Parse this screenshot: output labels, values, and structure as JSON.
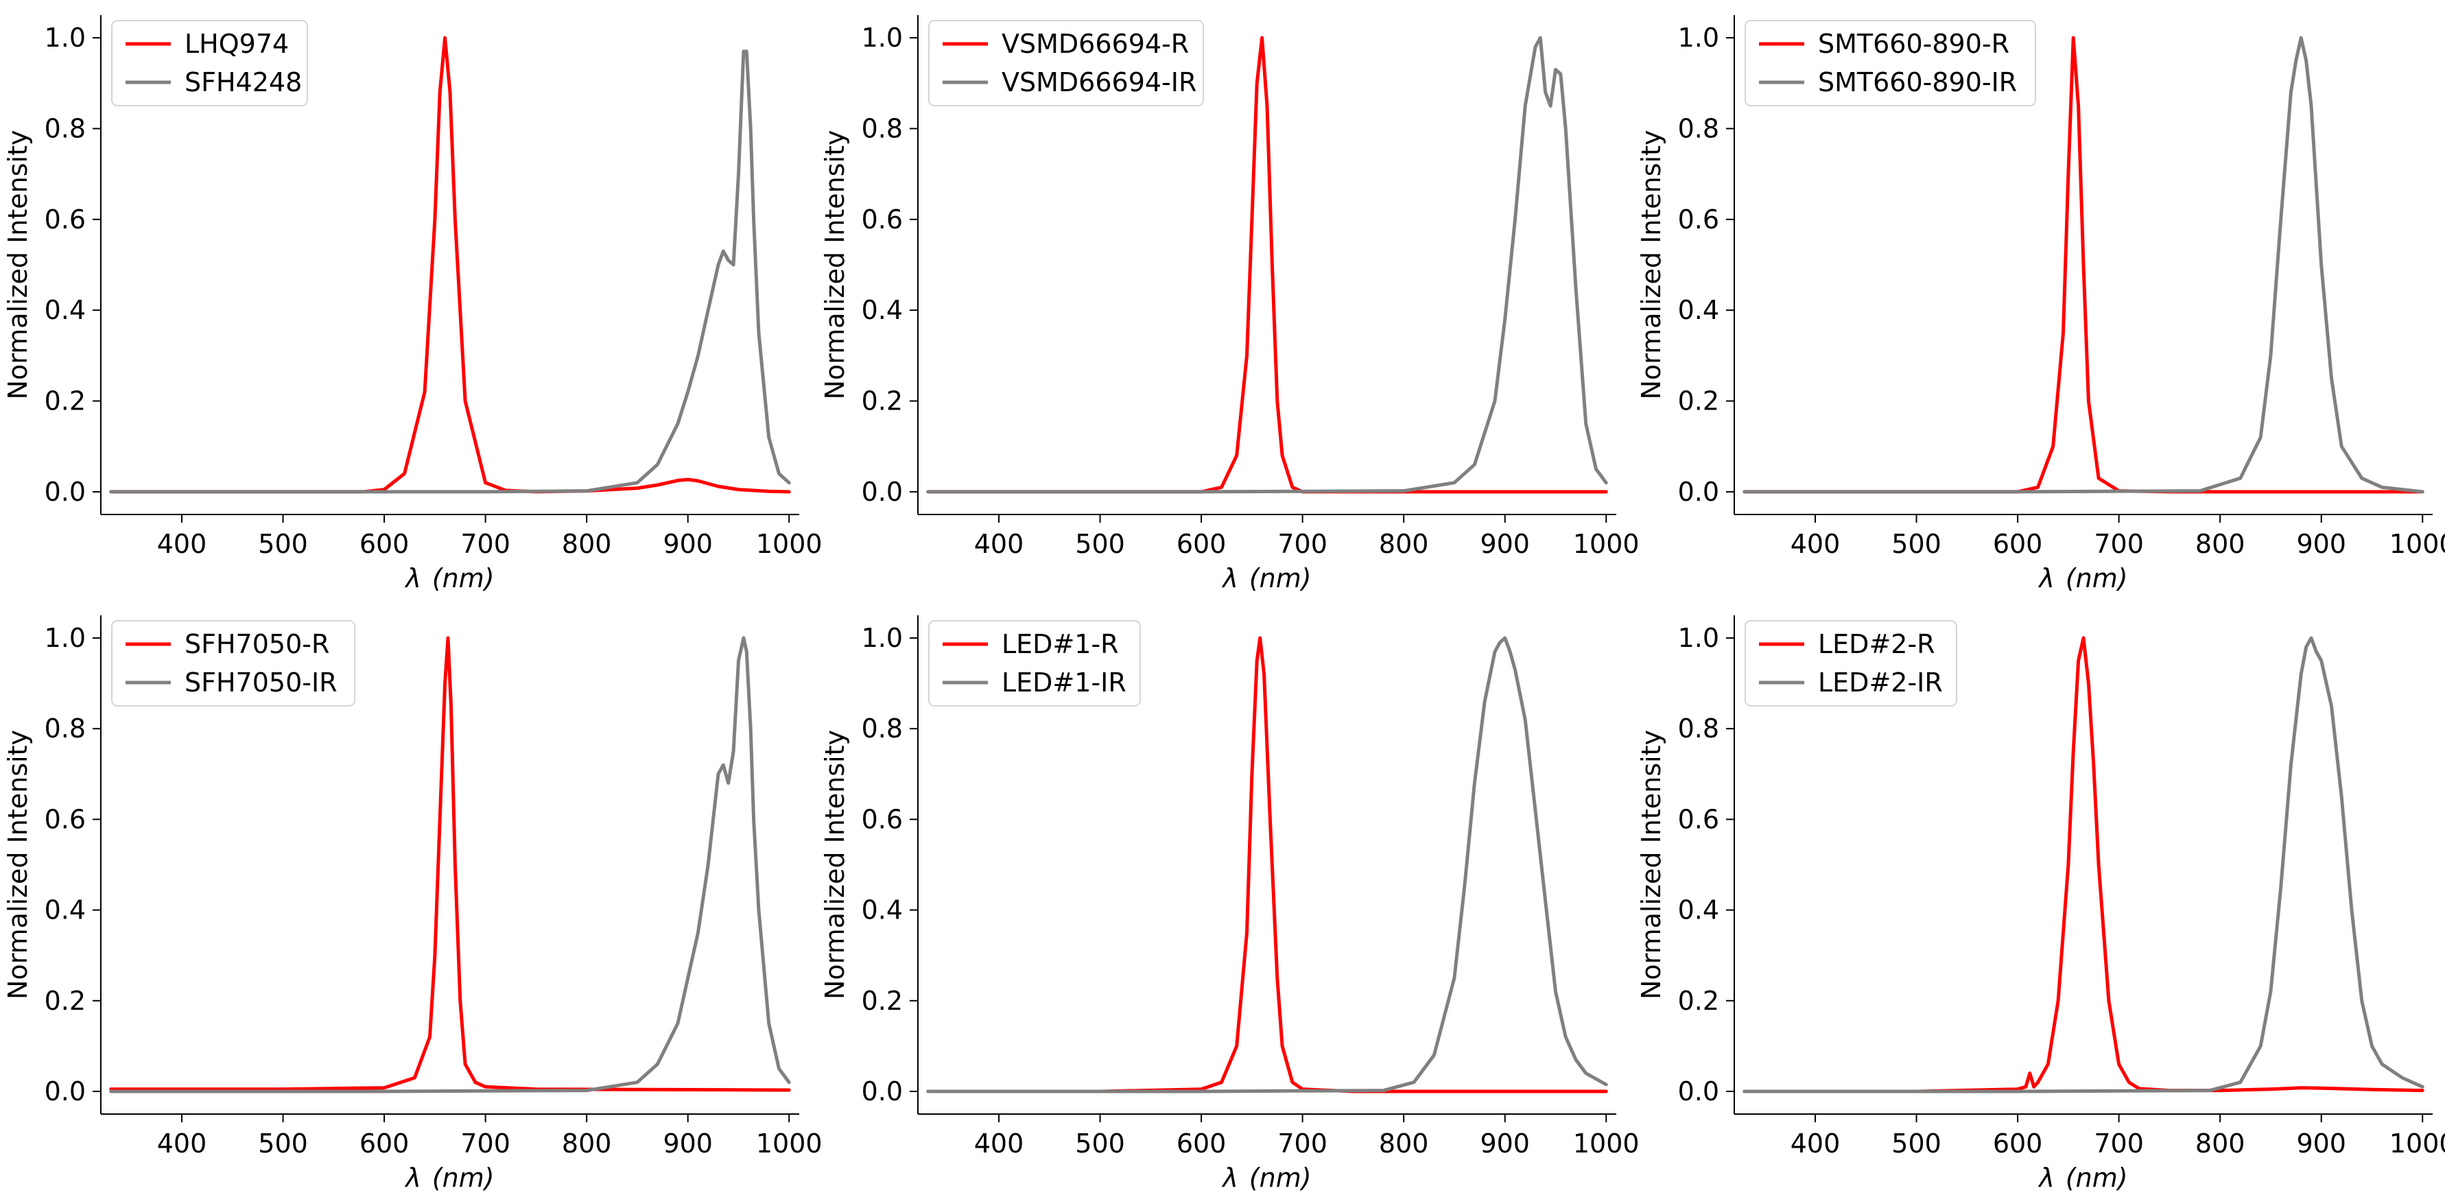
{
  "chart_data": [
    {
      "type": "line",
      "xlabel_symbol": "λ",
      "xlabel_unit": "(nm)",
      "ylabel": "Normalized Intensity",
      "xlim": [
        320,
        1010
      ],
      "ylim": [
        -0.05,
        1.05
      ],
      "xticks": [
        400,
        500,
        600,
        700,
        800,
        900,
        1000
      ],
      "yticks": [
        0.0,
        0.2,
        0.4,
        0.6,
        0.8,
        1.0
      ],
      "legend": "top-left",
      "grid": false,
      "series": [
        {
          "name": "LHQ974",
          "color": "#ff0000",
          "x": [
            330,
            400,
            500,
            580,
            600,
            620,
            640,
            650,
            655,
            660,
            665,
            670,
            680,
            700,
            720,
            750,
            800,
            850,
            870,
            890,
            900,
            910,
            930,
            950,
            980,
            1000
          ],
          "y": [
            0,
            0,
            0,
            0,
            0.005,
            0.04,
            0.22,
            0.6,
            0.88,
            1.0,
            0.88,
            0.6,
            0.2,
            0.02,
            0.003,
            0,
            0.002,
            0.008,
            0.015,
            0.025,
            0.027,
            0.024,
            0.012,
            0.005,
            0.001,
            0
          ]
        },
        {
          "name": "SFH4248",
          "color": "#808080",
          "x": [
            330,
            400,
            500,
            600,
            700,
            800,
            850,
            870,
            890,
            900,
            910,
            920,
            930,
            935,
            940,
            945,
            950,
            955,
            958,
            962,
            965,
            970,
            980,
            990,
            1000
          ],
          "y": [
            0,
            0,
            0,
            0,
            0,
            0.002,
            0.02,
            0.06,
            0.15,
            0.22,
            0.3,
            0.4,
            0.5,
            0.53,
            0.51,
            0.5,
            0.7,
            0.97,
            0.97,
            0.8,
            0.6,
            0.35,
            0.12,
            0.04,
            0.02
          ]
        }
      ]
    },
    {
      "type": "line",
      "xlabel_symbol": "λ",
      "xlabel_unit": "(nm)",
      "ylabel": "Normalized Intensity",
      "xlim": [
        320,
        1010
      ],
      "ylim": [
        -0.05,
        1.05
      ],
      "xticks": [
        400,
        500,
        600,
        700,
        800,
        900,
        1000
      ],
      "yticks": [
        0.0,
        0.2,
        0.4,
        0.6,
        0.8,
        1.0
      ],
      "legend": "top-left",
      "grid": false,
      "series": [
        {
          "name": "VSMD66694-R",
          "color": "#ff0000",
          "x": [
            330,
            500,
            600,
            620,
            635,
            645,
            650,
            655,
            660,
            665,
            670,
            675,
            680,
            690,
            700,
            750,
            850,
            1000
          ],
          "y": [
            0,
            0,
            0,
            0.01,
            0.08,
            0.3,
            0.6,
            0.9,
            1.0,
            0.85,
            0.5,
            0.2,
            0.08,
            0.01,
            0,
            0,
            0,
            0
          ]
        },
        {
          "name": "VSMD66694-IR",
          "color": "#808080",
          "x": [
            330,
            600,
            800,
            850,
            870,
            890,
            900,
            910,
            920,
            930,
            935,
            940,
            945,
            950,
            955,
            960,
            970,
            980,
            990,
            1000
          ],
          "y": [
            0,
            0,
            0.002,
            0.02,
            0.06,
            0.2,
            0.38,
            0.6,
            0.85,
            0.98,
            1.0,
            0.88,
            0.85,
            0.93,
            0.92,
            0.8,
            0.45,
            0.15,
            0.05,
            0.02
          ]
        }
      ]
    },
    {
      "type": "line",
      "xlabel_symbol": "λ",
      "xlabel_unit": "(nm)",
      "ylabel": "Normalized Intensity",
      "xlim": [
        320,
        1010
      ],
      "ylim": [
        -0.05,
        1.05
      ],
      "xticks": [
        400,
        500,
        600,
        700,
        800,
        900,
        1000
      ],
      "yticks": [
        0.0,
        0.2,
        0.4,
        0.6,
        0.8,
        1.0
      ],
      "legend": "top-left",
      "grid": false,
      "series": [
        {
          "name": "SMT660-890-R",
          "color": "#ff0000",
          "x": [
            330,
            500,
            600,
            620,
            635,
            645,
            650,
            655,
            660,
            665,
            670,
            680,
            700,
            750,
            1000
          ],
          "y": [
            0,
            0,
            0,
            0.01,
            0.1,
            0.35,
            0.7,
            1.0,
            0.85,
            0.5,
            0.2,
            0.03,
            0.002,
            0,
            0
          ]
        },
        {
          "name": "SMT660-890-IR",
          "color": "#808080",
          "x": [
            330,
            600,
            780,
            820,
            840,
            850,
            860,
            870,
            875,
            880,
            885,
            890,
            900,
            910,
            920,
            940,
            960,
            1000
          ],
          "y": [
            0,
            0,
            0.002,
            0.03,
            0.12,
            0.3,
            0.6,
            0.88,
            0.95,
            1.0,
            0.95,
            0.85,
            0.5,
            0.25,
            0.1,
            0.03,
            0.01,
            0
          ]
        }
      ]
    },
    {
      "type": "line",
      "xlabel_symbol": "λ",
      "xlabel_unit": "(nm)",
      "ylabel": "Normalized Intensity",
      "xlim": [
        320,
        1010
      ],
      "ylim": [
        -0.05,
        1.05
      ],
      "xticks": [
        400,
        500,
        600,
        700,
        800,
        900,
        1000
      ],
      "yticks": [
        0.0,
        0.2,
        0.4,
        0.6,
        0.8,
        1.0
      ],
      "legend": "top-left",
      "grid": false,
      "series": [
        {
          "name": "SFH7050-R",
          "color": "#ff0000",
          "x": [
            330,
            500,
            600,
            630,
            645,
            650,
            655,
            660,
            663,
            666,
            670,
            675,
            680,
            690,
            700,
            750,
            1000
          ],
          "y": [
            0.005,
            0.005,
            0.008,
            0.03,
            0.12,
            0.3,
            0.6,
            0.9,
            1.0,
            0.85,
            0.5,
            0.2,
            0.06,
            0.02,
            0.01,
            0.005,
            0.003
          ]
        },
        {
          "name": "SFH7050-IR",
          "color": "#808080",
          "x": [
            330,
            600,
            800,
            850,
            870,
            890,
            900,
            910,
            920,
            930,
            935,
            940,
            945,
            950,
            955,
            958,
            962,
            965,
            970,
            980,
            990,
            1000
          ],
          "y": [
            0,
            0,
            0.002,
            0.02,
            0.06,
            0.15,
            0.25,
            0.35,
            0.5,
            0.7,
            0.72,
            0.68,
            0.75,
            0.95,
            1.0,
            0.97,
            0.8,
            0.6,
            0.4,
            0.15,
            0.05,
            0.02
          ]
        }
      ]
    },
    {
      "type": "line",
      "xlabel_symbol": "λ",
      "xlabel_unit": "(nm)",
      "ylabel": "Normalized Intensity",
      "xlim": [
        320,
        1010
      ],
      "ylim": [
        -0.05,
        1.05
      ],
      "xticks": [
        400,
        500,
        600,
        700,
        800,
        900,
        1000
      ],
      "yticks": [
        0.0,
        0.2,
        0.4,
        0.6,
        0.8,
        1.0
      ],
      "legend": "top-left",
      "grid": false,
      "series": [
        {
          "name": "LED#1-R",
          "color": "#ff0000",
          "x": [
            330,
            500,
            600,
            620,
            635,
            645,
            650,
            655,
            658,
            662,
            668,
            675,
            680,
            690,
            700,
            750,
            1000
          ],
          "y": [
            0,
            0,
            0.005,
            0.02,
            0.1,
            0.35,
            0.7,
            0.95,
            1.0,
            0.92,
            0.6,
            0.25,
            0.1,
            0.02,
            0.005,
            0,
            0
          ]
        },
        {
          "name": "LED#1-IR",
          "color": "#808080",
          "x": [
            330,
            600,
            780,
            810,
            830,
            850,
            860,
            870,
            880,
            890,
            895,
            900,
            905,
            910,
            920,
            930,
            940,
            950,
            960,
            970,
            980,
            1000
          ],
          "y": [
            0,
            0,
            0.002,
            0.02,
            0.08,
            0.25,
            0.45,
            0.68,
            0.86,
            0.97,
            0.99,
            1.0,
            0.97,
            0.93,
            0.82,
            0.62,
            0.42,
            0.22,
            0.12,
            0.07,
            0.04,
            0.015
          ]
        }
      ]
    },
    {
      "type": "line",
      "xlabel_symbol": "λ",
      "xlabel_unit": "(nm)",
      "ylabel": "Normalized Intensity",
      "xlim": [
        320,
        1010
      ],
      "ylim": [
        -0.05,
        1.05
      ],
      "xticks": [
        400,
        500,
        600,
        700,
        800,
        900,
        1000
      ],
      "yticks": [
        0.0,
        0.2,
        0.4,
        0.6,
        0.8,
        1.0
      ],
      "legend": "top-left",
      "grid": false,
      "series": [
        {
          "name": "LED#2-R",
          "color": "#ff0000",
          "x": [
            330,
            500,
            600,
            608,
            612,
            616,
            620,
            630,
            640,
            650,
            655,
            660,
            665,
            670,
            675,
            680,
            690,
            700,
            710,
            720,
            750,
            800,
            850,
            880,
            900,
            950,
            1000
          ],
          "y": [
            0,
            0,
            0.005,
            0.01,
            0.04,
            0.01,
            0.02,
            0.06,
            0.2,
            0.5,
            0.75,
            0.95,
            1.0,
            0.9,
            0.72,
            0.5,
            0.2,
            0.06,
            0.02,
            0.006,
            0.002,
            0.002,
            0.005,
            0.008,
            0.007,
            0.004,
            0.002
          ]
        },
        {
          "name": "LED#2-IR",
          "color": "#808080",
          "x": [
            330,
            600,
            790,
            820,
            840,
            850,
            860,
            870,
            880,
            885,
            890,
            895,
            900,
            910,
            920,
            930,
            940,
            950,
            960,
            980,
            1000
          ],
          "y": [
            0,
            0,
            0.002,
            0.02,
            0.1,
            0.22,
            0.45,
            0.72,
            0.92,
            0.98,
            1.0,
            0.97,
            0.95,
            0.85,
            0.65,
            0.4,
            0.2,
            0.1,
            0.06,
            0.03,
            0.01
          ]
        }
      ]
    }
  ]
}
